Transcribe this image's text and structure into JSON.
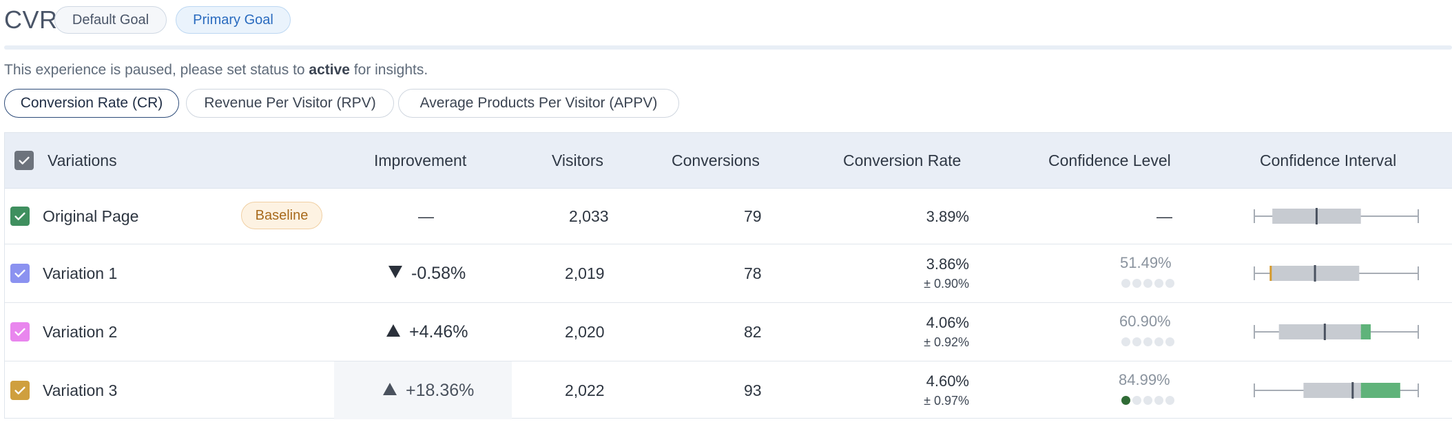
{
  "goal": {
    "title": "CVR",
    "chips": [
      "Default Goal",
      "Primary Goal"
    ]
  },
  "notice": {
    "prefix": "This experience is paused, please set status to ",
    "keyword": "active",
    "suffix": " for insights."
  },
  "metric_tabs": [
    {
      "label": "Conversion Rate (CR)",
      "active": true
    },
    {
      "label": "Revenue Per Visitor (RPV)",
      "active": false
    },
    {
      "label": "Average Products Per Visitor (APPV)",
      "active": false
    }
  ],
  "table": {
    "headers": {
      "variations": "Variations",
      "improvement": "Improvement",
      "visitors": "Visitors",
      "conversions": "Conversions",
      "conversion_rate": "Conversion Rate",
      "confidence_level": "Confidence Level",
      "confidence_interval": "Confidence Interval"
    },
    "rows": [
      {
        "name": "Original Page",
        "color": "#3f8f5f",
        "badge": "Baseline",
        "improvement": "—",
        "visitors": "2,033",
        "conversions": "79",
        "rate": "3.89%",
        "rate_margin": "",
        "confidence": "—",
        "confidence_dots_filled": 0,
        "interval": {
          "whisker_low": 0.0,
          "box_low": 0.11,
          "median": 0.38,
          "box_high": 0.65,
          "whisker_high": 1.0,
          "gain_low": null,
          "gain_high": null,
          "loss_mark": null
        }
      },
      {
        "name": "Variation 1",
        "color": "#8b92f0",
        "badge": "",
        "improvement_dir": "down",
        "improvement": "-0.58%",
        "visitors": "2,019",
        "conversions": "78",
        "rate": "3.86%",
        "rate_margin": "± 0.90%",
        "confidence": "51.49%",
        "confidence_dots_filled": 0,
        "interval": {
          "whisker_low": 0.0,
          "box_low": 0.1,
          "median": 0.37,
          "box_high": 0.64,
          "whisker_high": 1.0,
          "gain_low": null,
          "gain_high": null,
          "loss_mark": 0.1
        }
      },
      {
        "name": "Variation 2",
        "color": "#e986ee",
        "badge": "",
        "improvement_dir": "up",
        "improvement": "+4.46%",
        "visitors": "2,020",
        "conversions": "82",
        "rate": "4.06%",
        "rate_margin": "± 0.92%",
        "confidence": "60.90%",
        "confidence_dots_filled": 0,
        "interval": {
          "whisker_low": 0.0,
          "box_low": 0.15,
          "median": 0.43,
          "box_high": 0.65,
          "whisker_high": 1.0,
          "gain_low": 0.65,
          "gain_high": 0.71,
          "loss_mark": null
        }
      },
      {
        "name": "Variation 3",
        "color": "#cf9f3e",
        "badge": "",
        "improvement_dir": "up",
        "improvement": "+18.36%",
        "visitors": "2,022",
        "conversions": "93",
        "rate": "4.60%",
        "rate_margin": "± 0.97%",
        "confidence": "84.99%",
        "confidence_dots_filled": 1,
        "interval": {
          "whisker_low": 0.0,
          "box_low": 0.3,
          "median": 0.6,
          "box_high": 0.65,
          "whisker_high": 1.0,
          "gain_low": 0.65,
          "gain_high": 0.89,
          "loss_mark": null
        }
      }
    ]
  },
  "colors": {
    "header_bg": "#e9eef6",
    "gain": "#5fb37a",
    "box": "#c7cbd1",
    "median": "#4a5260",
    "loss_mark": "#d59a2c"
  }
}
